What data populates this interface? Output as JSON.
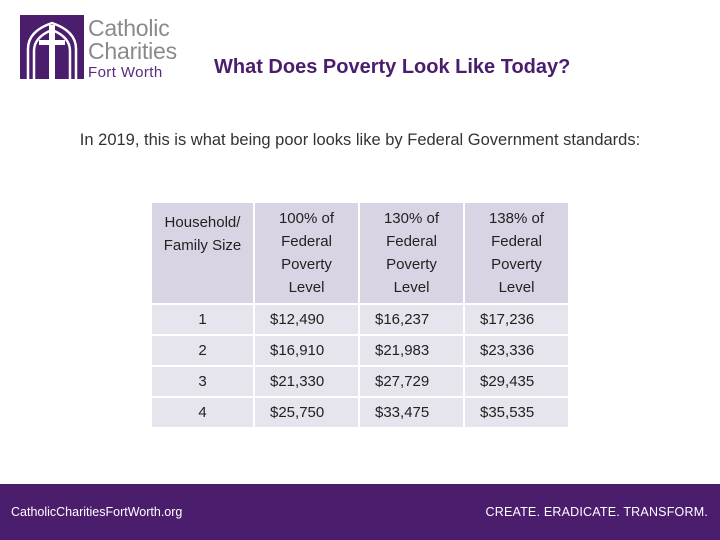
{
  "header": {
    "logo": {
      "line1": "Catholic",
      "line2": "Charities",
      "line3": "Fort Worth"
    },
    "title": "What Does Poverty Look Like Today?"
  },
  "subtitle": "In 2019, this is what being poor looks like by Federal Government standards:",
  "table": {
    "headers": [
      [
        "Household/",
        "Family Size"
      ],
      [
        "100% of",
        "Federal",
        "Poverty",
        "Level"
      ],
      [
        "130% of",
        "Federal",
        "Poverty",
        "Level"
      ],
      [
        "138% of",
        "Federal",
        "Poverty",
        "Level"
      ]
    ],
    "rows": [
      [
        "1",
        "$12,490",
        "$16,237",
        "$17,236"
      ],
      [
        "2",
        "$16,910",
        "$21,983",
        "$23,336"
      ],
      [
        "3",
        "$21,330",
        "$27,729",
        "$29,435"
      ],
      [
        "4",
        "$25,750",
        "$33,475",
        "$35,535"
      ]
    ]
  },
  "footer": {
    "website": "CatholicCharitiesFortWorth.org",
    "tagline": "CREATE. ERADICATE. TRANSFORM."
  },
  "colors": {
    "brand_purple": "#4b1e6d",
    "header_cell": "#d9d4e3",
    "body_cell": "#e6e4ec",
    "logo_gray": "#8a8a8a"
  }
}
